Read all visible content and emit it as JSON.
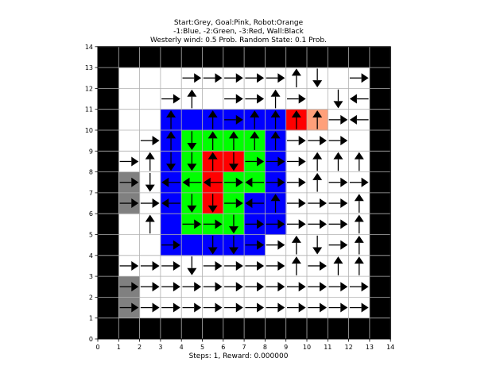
{
  "title": {
    "line1": "Start:Grey, Goal:Pink, Robot:Orange",
    "line2": "-1:Blue, -2:Green, -3:Red, Wall:Black",
    "line3": "Westerly wind: 0.5 Prob. Random State: 0.1 Prob."
  },
  "status": "Steps: 1, Reward: 0.000000",
  "colors": {
    "wall": "#000000",
    "blue": "#0000ff",
    "green": "#00ff00",
    "red": "#ff0000",
    "start": "#808080",
    "robot": "#ffa07a",
    "empty": "#ffffff",
    "grid": "#b0b0b0"
  },
  "axes": {
    "x_ticks": [
      0,
      1,
      2,
      3,
      4,
      5,
      6,
      7,
      8,
      9,
      10,
      11,
      12,
      13,
      14
    ],
    "y_ticks": [
      0,
      1,
      2,
      3,
      4,
      5,
      6,
      7,
      8,
      9,
      10,
      11,
      12,
      13,
      14
    ],
    "xlim": [
      0,
      14
    ],
    "ylim": [
      0,
      14
    ]
  },
  "grid_rows_top_to_bottom": [
    "WWWWWWWWWWWWWW",
    "W............W",
    "W............W",
    "W..BBBBBBR...W",
    "W..BGGGGB....W",
    "W..BGRRGB....W",
    "WS.BGRGGB....W",
    "WS.BGRGBB....W",
    "W..BGGGBB....W",
    "W..BBBBB.....W",
    "W............W",
    "WS...........W",
    "WS...........W",
    "WWWWWWWWWWWWWW"
  ],
  "arrows_rows_top_to_bottom": [
    "..............",
    ".   RRRRRUD RD.",
    ".  RU RRUR DL.",
    ".  U URUUUURLL",
    ". RUDUUUURRR U.",
    ".RUDDUDRRRUUU.",
    ".RDLLLRLRRURR.",
    ".RRLDDRLURRRU.",
    ". U RRDRRRRRU.",
    ".  R DDRRUDRU.",
    ".RRRDRRRRURUU.",
    ".RRRRRRRRRRRR.",
    ".RRRRRRRRRRRR.",
    ".............."
  ]
}
